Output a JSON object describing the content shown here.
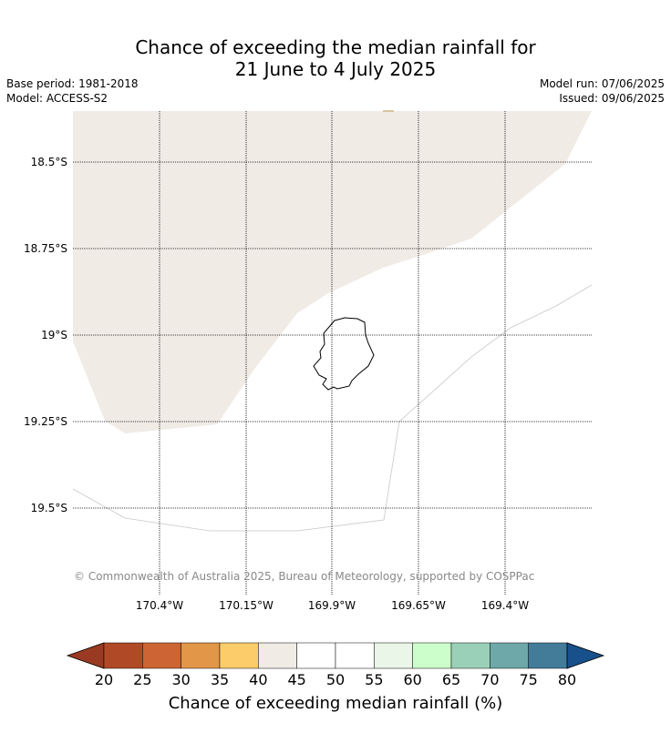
{
  "title": {
    "line1": "Chance of exceeding the median rainfall for",
    "line2": "21 June to 4 July 2025"
  },
  "meta": {
    "base_period": "Base period: 1981-2018",
    "model": "Model: ACCESS-S2",
    "model_run": "Model run: 07/06/2025",
    "issued": "Issued: 09/06/2025"
  },
  "map": {
    "lat_labels": [
      "18.5°S",
      "18.75°S",
      "19°S",
      "19.25°S",
      "19.5°S"
    ],
    "lon_labels": [
      "170.4°W",
      "170.15°W",
      "169.9°W",
      "169.65°W",
      "169.4°W"
    ],
    "copyright": "© Commonwealth of Australia 2025, Bureau of Meteorology, supported by COSPPac",
    "colors": {
      "land_fill": "#f0ebe5",
      "island_outline": "#000000",
      "gridline": "#000000"
    }
  },
  "colorbar": {
    "ticks": [
      "20",
      "25",
      "30",
      "35",
      "40",
      "45",
      "50",
      "55",
      "60",
      "65",
      "70",
      "75",
      "80"
    ],
    "label": "Chance of exceeding median rainfall (%)",
    "under_color": "#9b3a22",
    "over_color": "#17508a",
    "bins": [
      "#b04a26",
      "#cc6533",
      "#e19648",
      "#fccc6a",
      "#f0ebe5",
      "#ffffff",
      "#ffffff",
      "#eaf6e8",
      "#ccfecc",
      "#9ad0b8",
      "#6ea8a8",
      "#427c99"
    ]
  }
}
